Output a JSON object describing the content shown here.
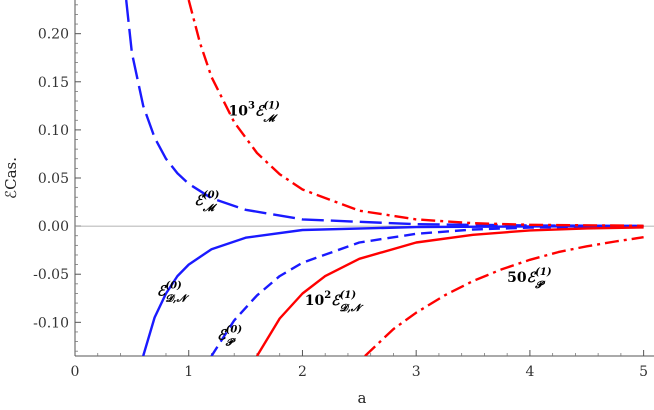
{
  "chart_data": {
    "type": "line",
    "title": "",
    "xlabel": "a",
    "ylabel": "ℰCas.",
    "xlim": [
      0,
      5.1
    ],
    "ylim": [
      -0.135,
      0.235
    ],
    "x_ticks": [
      0,
      1,
      2,
      3,
      4,
      5
    ],
    "x_tick_labels": [
      "0",
      "1",
      "2",
      "3",
      "4",
      "5"
    ],
    "y_ticks": [
      -0.1,
      -0.05,
      0.0,
      0.05,
      0.1,
      0.15,
      0.2
    ],
    "y_tick_labels": [
      "-0.10",
      "-0.05",
      "0.00",
      "0.05",
      "0.10",
      "0.15",
      "0.20"
    ],
    "grid": false,
    "series": [
      {
        "style": "long-dash",
        "color": "#1a1aff",
        "x": [
          0.45,
          0.5,
          0.6,
          0.7,
          0.8,
          0.9,
          1.0,
          1.2,
          1.5,
          2.0,
          3.0,
          4.0,
          5.0
        ],
        "y": [
          0.235,
          0.18,
          0.125,
          0.092,
          0.07,
          0.055,
          0.044,
          0.029,
          0.017,
          0.007,
          0.002,
          0.0006,
          0.0002
        ]
      },
      {
        "style": "solid",
        "color": "#1a1aff",
        "x": [
          0.6,
          0.7,
          0.8,
          0.9,
          1.0,
          1.2,
          1.5,
          2.0,
          3.0,
          4.0,
          5.0
        ],
        "y": [
          -0.135,
          -0.095,
          -0.07,
          -0.052,
          -0.04,
          -0.024,
          -0.012,
          -0.004,
          -0.001,
          -0.0003,
          -0.0001
        ]
      },
      {
        "style": "short-dash",
        "color": "#1a1aff",
        "x": [
          1.2,
          1.4,
          1.6,
          1.8,
          2.0,
          2.5,
          3.0,
          3.5,
          4.0,
          5.0
        ],
        "y": [
          -0.135,
          -0.098,
          -0.072,
          -0.052,
          -0.038,
          -0.017,
          -0.008,
          -0.0035,
          -0.0015,
          -0.0002
        ]
      },
      {
        "style": "dash-dot",
        "color": "#ff0000",
        "x": [
          1.0,
          1.1,
          1.2,
          1.4,
          1.6,
          1.8,
          2.0,
          2.5,
          3.0,
          3.5,
          4.0,
          5.0
        ],
        "y": [
          0.235,
          0.19,
          0.155,
          0.108,
          0.076,
          0.054,
          0.038,
          0.016,
          0.007,
          0.003,
          0.0014,
          0.0003
        ]
      },
      {
        "style": "solid",
        "color": "#ff0000",
        "x": [
          1.6,
          1.8,
          2.0,
          2.2,
          2.5,
          3.0,
          3.5,
          4.0,
          4.5,
          5.0
        ],
        "y": [
          -0.135,
          -0.096,
          -0.07,
          -0.052,
          -0.034,
          -0.017,
          -0.009,
          -0.0045,
          -0.0024,
          -0.0013
        ]
      },
      {
        "style": "dash-dot",
        "color": "#ff0000",
        "x": [
          2.55,
          2.8,
          3.0,
          3.25,
          3.5,
          3.75,
          4.0,
          4.25,
          4.5,
          4.75,
          5.0
        ],
        "y": [
          -0.135,
          -0.107,
          -0.09,
          -0.072,
          -0.057,
          -0.045,
          -0.035,
          -0.027,
          -0.021,
          -0.016,
          -0.0115
        ]
      }
    ],
    "annotations": [
      {
        "id": "ann-m1",
        "x": 1.35,
        "y": 0.115,
        "coeff": "10",
        "exp": "3",
        "letter": "ℰ",
        "sup": "(1)",
        "sub": "𝓜"
      },
      {
        "id": "ann-m0",
        "x": 1.05,
        "y": 0.022,
        "coeff": "",
        "exp": "",
        "letter": "ℰ",
        "sup": "(0)",
        "sub": "𝓜"
      },
      {
        "id": "ann-dn0",
        "x": 0.72,
        "y": -0.072,
        "coeff": "",
        "exp": "",
        "letter": "ℰ",
        "sup": "(0)",
        "sub": "𝓓,𝓝"
      },
      {
        "id": "ann-p0",
        "x": 1.25,
        "y": -0.118,
        "coeff": "",
        "exp": "",
        "letter": "ℰ",
        "sup": "(0)",
        "sub": "𝓟"
      },
      {
        "id": "ann-dn1",
        "x": 2.02,
        "y": -0.082,
        "coeff": "10",
        "exp": "2",
        "letter": "ℰ",
        "sup": "(1)",
        "sub": "𝓓,𝓝"
      },
      {
        "id": "ann-p1",
        "x": 3.8,
        "y": -0.058,
        "coeff": "50",
        "exp": "",
        "letter": "ℰ",
        "sup": "(1)",
        "sub": "𝓟"
      }
    ]
  }
}
